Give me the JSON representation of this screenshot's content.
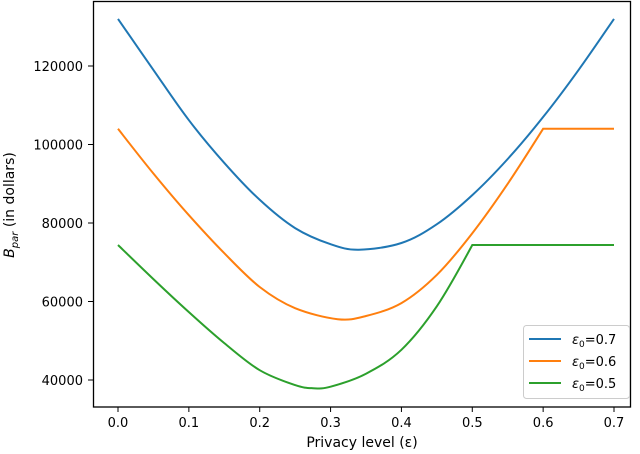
{
  "chart_data": {
    "type": "line",
    "title": "",
    "xlabel": "Privacy level (ε)",
    "ylabel": "B_par (in dollars)",
    "ylabel_main": "B",
    "ylabel_sub": "par",
    "ylabel_rest": " (in dollars)",
    "xlim": [
      -0.035,
      0.735
    ],
    "ylim": [
      33500,
      137500
    ],
    "x_ticks": [
      0.0,
      0.1,
      0.2,
      0.3,
      0.4,
      0.5,
      0.6,
      0.7
    ],
    "x_tick_labels": [
      "0.0",
      "0.1",
      "0.2",
      "0.3",
      "0.4",
      "0.5",
      "0.6",
      "0.7"
    ],
    "y_ticks": [
      40000,
      60000,
      80000,
      100000,
      120000
    ],
    "y_tick_labels": [
      "40000",
      "60000",
      "80000",
      "100000",
      "120000"
    ],
    "grid": false,
    "legend_position": "lower right",
    "x": [
      0.0,
      0.05,
      0.1,
      0.15,
      0.2,
      0.25,
      0.3,
      0.34,
      0.4,
      0.45,
      0.5,
      0.55,
      0.6,
      0.65,
      0.7
    ],
    "series": [
      {
        "name": "ε₀=0.7",
        "legend_main": "ε",
        "legend_sub": "0",
        "legend_rest": "=0.7",
        "color": "#1f77b4",
        "x": [
          0.0,
          0.05,
          0.1,
          0.15,
          0.2,
          0.25,
          0.3,
          0.34,
          0.4,
          0.45,
          0.5,
          0.55,
          0.6,
          0.65,
          0.7
        ],
        "values": [
          132000,
          119000,
          106200,
          95300,
          85900,
          78700,
          74600,
          73200,
          74900,
          79700,
          87100,
          96300,
          107000,
          119000,
          132000
        ]
      },
      {
        "name": "ε₀=0.6",
        "legend_main": "ε",
        "legend_sub": "0",
        "legend_rest": "=0.6",
        "color": "#ff7f0e",
        "x": [
          0.0,
          0.05,
          0.1,
          0.15,
          0.2,
          0.25,
          0.31,
          0.35,
          0.4,
          0.45,
          0.5,
          0.55,
          0.6,
          0.65,
          0.7
        ],
        "values": [
          104000,
          92600,
          82000,
          72300,
          63700,
          58300,
          55500,
          56300,
          59600,
          66800,
          77400,
          90000,
          104000,
          104000,
          104000
        ]
      },
      {
        "name": "ε₀=0.5",
        "legend_main": "ε",
        "legend_sub": "0",
        "legend_rest": "=0.5",
        "color": "#2ca02c",
        "x": [
          0.0,
          0.05,
          0.1,
          0.15,
          0.2,
          0.25,
          0.275,
          0.3,
          0.35,
          0.4,
          0.45,
          0.5,
          0.55,
          0.6,
          0.7
        ],
        "values": [
          74400,
          65700,
          57300,
          49400,
          42500,
          38700,
          37900,
          38300,
          41600,
          47700,
          58800,
          74400,
          74400,
          74400,
          74400
        ]
      }
    ]
  }
}
